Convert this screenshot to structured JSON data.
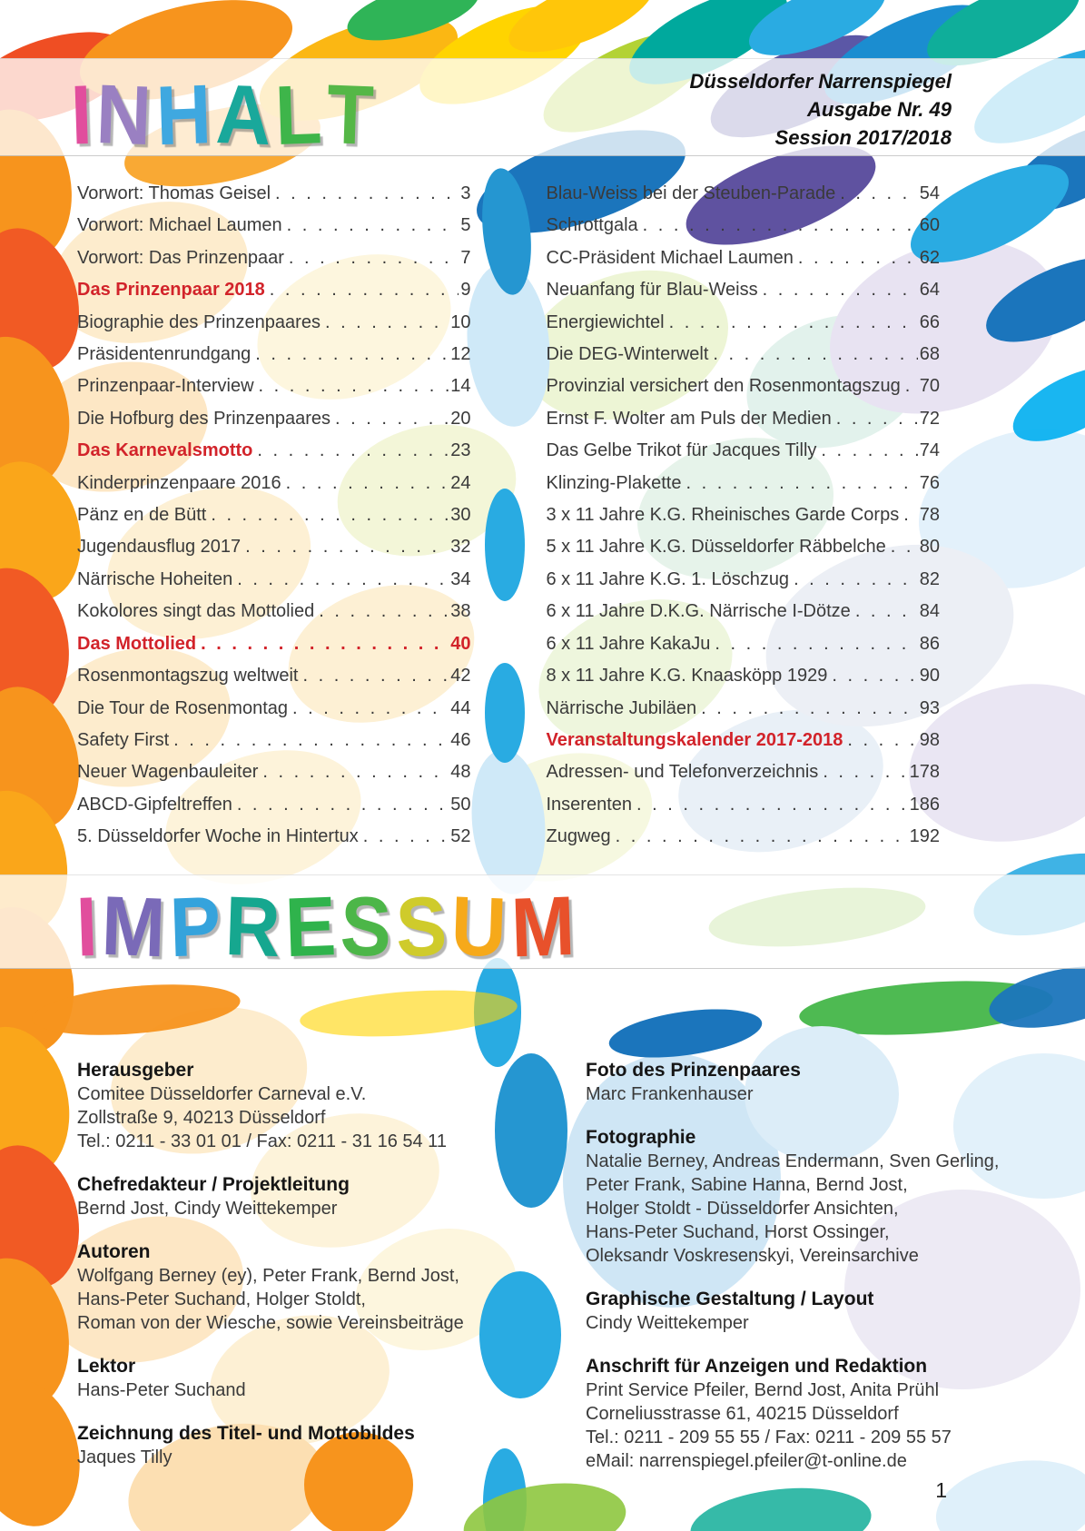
{
  "header": {
    "title": "INHALT",
    "title_letters": [
      {
        "ch": "I",
        "color": "#e14e9d"
      },
      {
        "ch": "N",
        "color": "#9a80c2"
      },
      {
        "ch": "H",
        "color": "#3fa8e0"
      },
      {
        "ch": "A",
        "color": "#19a89b"
      },
      {
        "ch": "L",
        "color": "#3eb54a"
      },
      {
        "ch": "T",
        "color": "#55b747"
      }
    ],
    "magazine": "Düsseldorfer Narrenspiegel",
    "issue": "Ausgabe Nr. 49",
    "session": "Session 2017/2018"
  },
  "toc": {
    "left": [
      {
        "label": "Vorwort: Thomas Geisel",
        "page": "3"
      },
      {
        "label": "Vorwort: Michael Laumen",
        "page": "5"
      },
      {
        "label": "Vorwort: Das Prinzenpaar",
        "page": "7"
      },
      {
        "label": "Das Prinzenpaar 2018",
        "page": "9",
        "accent": true
      },
      {
        "label": "Biographie des Prinzenpaares",
        "page": "10"
      },
      {
        "label": "Präsidentenrundgang",
        "page": "12"
      },
      {
        "label": "Prinzenpaar-Interview",
        "page": "14"
      },
      {
        "label": "Die Hofburg des Prinzenpaares",
        "page": "20"
      },
      {
        "label": "Das Karnevalsmotto",
        "page": "23",
        "accent": true
      },
      {
        "label": "Kinderprinzenpaare 2016",
        "page": "24"
      },
      {
        "label": "Pänz en de Bütt",
        "page": "30"
      },
      {
        "label": "Jugendausflug 2017",
        "page": "32"
      },
      {
        "label": "Närrische Hoheiten",
        "page": "34"
      },
      {
        "label": "Kokolores singt das Mottolied",
        "page": "38"
      },
      {
        "label": "Das Mottolied",
        "page": "40",
        "accent": true,
        "accent_full": true
      },
      {
        "label": "Rosenmontagszug weltweit",
        "page": "42"
      },
      {
        "label": "Die Tour de Rosenmontag",
        "page": "44"
      },
      {
        "label": "Safety First",
        "page": "46"
      },
      {
        "label": "Neuer Wagenbauleiter",
        "page": "48"
      },
      {
        "label": "ABCD-Gipfeltreffen",
        "page": "50"
      },
      {
        "label": "5. Düsseldorfer Woche in Hintertux",
        "page": "52"
      }
    ],
    "right": [
      {
        "label": "Blau-Weiss bei der Steuben-Parade",
        "page": "54"
      },
      {
        "label": "Schrottgala",
        "page": "60"
      },
      {
        "label": "CC-Präsident Michael Laumen",
        "page": "62"
      },
      {
        "label": "Neuanfang für Blau-Weiss",
        "page": "64"
      },
      {
        "label": "Energiewichtel",
        "page": "66"
      },
      {
        "label": "Die DEG-Winterwelt",
        "page": "68"
      },
      {
        "label": "Provinzial versichert den Rosenmontagszug",
        "page": "70"
      },
      {
        "label": "Ernst F. Wolter am Puls der Medien",
        "page": "72"
      },
      {
        "label": "Das Gelbe Trikot für Jacques Tilly",
        "page": "74"
      },
      {
        "label": "Klinzing-Plakette",
        "page": "76"
      },
      {
        "label": "3 x 11 Jahre K.G. Rheinisches Garde Corps",
        "page": "78"
      },
      {
        "label": "5 x 11 Jahre K.G. Düsseldorfer Räbbelche",
        "page": "80"
      },
      {
        "label": "6 x 11 Jahre K.G. 1. Löschzug",
        "page": "82"
      },
      {
        "label": "6 x 11 Jahre D.K.G. Närrische I-Dötze",
        "page": "84"
      },
      {
        "label": "6 x 11 Jahre KakaJu",
        "page": "86"
      },
      {
        "label": "8 x 11 Jahre K.G. Knaasköpp 1929",
        "page": "90"
      },
      {
        "label": "Närrische Jubiläen",
        "page": "93"
      },
      {
        "label": "Veranstaltungskalender 2017-2018",
        "page": "98",
        "accent": true
      },
      {
        "label": "Adressen- und Telefonverzeichnis",
        "page": "178"
      },
      {
        "label": "Inserenten",
        "page": "186"
      },
      {
        "label": "Zugweg",
        "page": "192"
      }
    ]
  },
  "impressum": {
    "title": "IMPRESSUM",
    "title_letters": [
      {
        "ch": "I",
        "color": "#e14e9d"
      },
      {
        "ch": "M",
        "color": "#7a6ab8"
      },
      {
        "ch": "P",
        "color": "#35a3dc"
      },
      {
        "ch": "R",
        "color": "#16a78f"
      },
      {
        "ch": "E",
        "color": "#2fb34c"
      },
      {
        "ch": "S",
        "color": "#4cb648"
      },
      {
        "ch": "S",
        "color": "#cfcb2b"
      },
      {
        "ch": "U",
        "color": "#f6a91a"
      },
      {
        "ch": "M",
        "color": "#e8512b"
      }
    ],
    "left_blocks": [
      {
        "heading": "Herausgeber",
        "lines": [
          "Comitee Düsseldorfer Carneval e.V.",
          "Zollstraße 9, 40213 Düsseldorf",
          "Tel.: 0211 - 33 01 01 / Fax: 0211 - 31 16 54 11"
        ]
      },
      {
        "heading": "Chefredakteur / Projektleitung",
        "lines": [
          "Bernd Jost, Cindy Weittekemper"
        ]
      },
      {
        "heading": "Autoren",
        "lines": [
          "Wolfgang Berney (ey), Peter Frank, Bernd Jost,",
          "Hans-Peter Suchand, Holger Stoldt,",
          "Roman von der Wiesche, sowie Vereinsbeiträge"
        ]
      },
      {
        "heading": "Lektor",
        "lines": [
          "Hans-Peter Suchand"
        ]
      },
      {
        "heading": "Zeichnung des Titel- und Mottobildes",
        "lines": [
          "Jaques Tilly"
        ]
      }
    ],
    "right_blocks": [
      {
        "heading": "Foto des Prinzenpaares",
        "lines": [
          "Marc Frankenhauser"
        ]
      },
      {
        "heading": "Fotographie",
        "lines": [
          "Natalie Berney, Andreas Endermann, Sven Gerling,",
          "Peter Frank, Sabine Hanna, Bernd Jost,",
          "Holger Stoldt - Düsseldorfer Ansichten,",
          "Hans-Peter Suchand, Horst Ossinger,",
          "Oleksandr Voskresenskyi, Vereinsarchive"
        ]
      },
      {
        "heading": "Graphische Gestaltung / Layout",
        "lines": [
          "Cindy Weittekemper"
        ]
      },
      {
        "heading": "Anschrift für Anzeigen und Redaktion",
        "lines": [
          "Print Service Pfeiler, Bernd Jost, Anita Prühl",
          "Corneliusstrasse 61, 40215 Düsseldorf",
          "Tel.: 0211 - 209 55 55 / Fax: 0211 - 209 55 57",
          "eMail: narrenspiegel.pfeiler@t-online.de"
        ]
      }
    ]
  },
  "page": {
    "number": "1"
  },
  "colors": {
    "accent_red": "#d2232a",
    "body_text": "#3a3a3a"
  }
}
